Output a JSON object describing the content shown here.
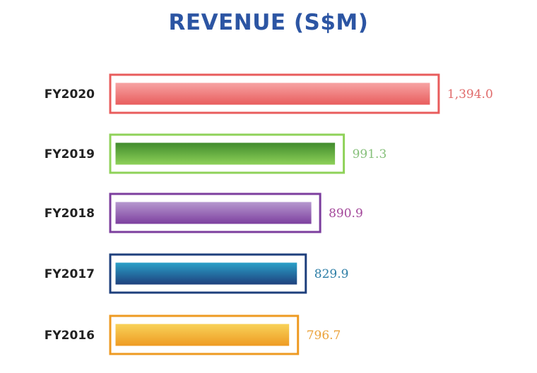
{
  "chart_data": {
    "type": "bar",
    "orientation": "horizontal",
    "title": "REVENUE (S$M)",
    "categories": [
      "FY2020",
      "FY2019",
      "FY2018",
      "FY2017",
      "FY2016"
    ],
    "values": [
      1394.0,
      991.3,
      890.9,
      829.9,
      796.7
    ],
    "value_labels": [
      "1,394.0",
      "991.3",
      "890.9",
      "829.9",
      "796.7"
    ],
    "xlabel": "",
    "ylabel": "",
    "grid": false,
    "legend": "none",
    "colors": {
      "FY2020": {
        "top": "#f7a4a4",
        "bottom": "#e85c5c",
        "label": "#e06a6a"
      },
      "FY2019": {
        "top": "#3f8a2c",
        "bottom": "#8fd259",
        "label": "#86c07a"
      },
      "FY2018": {
        "top": "#b79ad0",
        "bottom": "#7c3e9e",
        "label": "#a3479a"
      },
      "FY2017": {
        "top": "#2aa2c9",
        "bottom": "#1e3f7c",
        "label": "#2d7ea6"
      },
      "FY2016": {
        "top": "#f8d35a",
        "bottom": "#ee9a22",
        "label": "#eba23a"
      }
    },
    "title_color": "#2c55a3"
  }
}
